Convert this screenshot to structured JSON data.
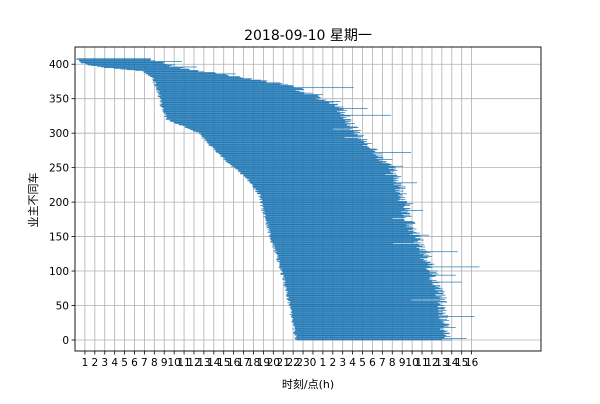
{
  "chart_data": {
    "type": "bar",
    "orientation": "horizontal",
    "title": "2018-09-10 星期一",
    "xlabel": "时刻/点(h)",
    "ylabel": "业主不同车",
    "x_tick_labels": [
      "1",
      "2",
      "3",
      "4",
      "5",
      "6",
      "7",
      "8",
      "9",
      "10",
      "11",
      "12",
      "13",
      "14",
      "15",
      "16",
      "17",
      "18",
      "19",
      "20",
      "21",
      "22",
      "23",
      "0",
      "1",
      "2",
      "3",
      "4",
      "5",
      "6",
      "7",
      "8",
      "9",
      "10",
      "11",
      "12",
      "13",
      "14",
      "15",
      "16"
    ],
    "x_tick_positions": [
      1,
      2,
      3,
      4,
      5,
      6,
      7,
      8,
      9,
      10,
      11,
      12,
      13,
      14,
      15,
      16,
      17,
      18,
      19,
      20,
      21,
      22,
      23,
      24,
      25,
      26,
      27,
      28,
      29,
      30,
      31,
      32,
      33,
      34,
      35,
      36,
      37,
      38,
      39,
      40
    ],
    "xlim": [
      0,
      47
    ],
    "ylim": [
      -16,
      425
    ],
    "y_ticks": [
      0,
      50,
      100,
      150,
      200,
      250,
      300,
      350,
      400
    ],
    "grid": true,
    "bar_color": "#1f77b4",
    "vehicles": {
      "count": 409,
      "description_of_values": "each horizontal bar spans from arrival time (start, hours) to departure time (end, hours) for vehicle index y",
      "start_anchors": [
        [
          0,
          22.3
        ],
        [
          30,
          21.9
        ],
        [
          60,
          21.5
        ],
        [
          90,
          21.0
        ],
        [
          120,
          20.4
        ],
        [
          150,
          19.7
        ],
        [
          180,
          19.1
        ],
        [
          210,
          18.6
        ],
        [
          235,
          17.3
        ],
        [
          260,
          15.2
        ],
        [
          285,
          13.4
        ],
        [
          300,
          12.5
        ],
        [
          320,
          9.3
        ],
        [
          340,
          8.7
        ],
        [
          360,
          8.4
        ],
        [
          380,
          7.8
        ],
        [
          390,
          6.8
        ],
        [
          395,
          3.0
        ],
        [
          400,
          1.0
        ],
        [
          409,
          0.0
        ]
      ],
      "end_anchors": [
        [
          0,
          37.5
        ],
        [
          60,
          37.0
        ],
        [
          120,
          35.5
        ],
        [
          180,
          33.5
        ],
        [
          240,
          32.5
        ],
        [
          300,
          28.5
        ],
        [
          340,
          26.5
        ],
        [
          370,
          21.5
        ],
        [
          395,
          10.5
        ],
        [
          409,
          7.5
        ]
      ],
      "long_extensions": [
        [
          2,
          39.5
        ],
        [
          8,
          37.2
        ],
        [
          18,
          38.4
        ],
        [
          22,
          37.8
        ],
        [
          34,
          40.3
        ],
        [
          48,
          36.6
        ],
        [
          58,
          33.9
        ],
        [
          70,
          37.3
        ],
        [
          84,
          39.0
        ],
        [
          94,
          38.4
        ],
        [
          106,
          40.8
        ],
        [
          118,
          34.8
        ],
        [
          128,
          38.6
        ],
        [
          140,
          32.1
        ],
        [
          152,
          35.7
        ],
        [
          164,
          33.4
        ],
        [
          176,
          32.0
        ],
        [
          188,
          35.1
        ],
        [
          198,
          34.1
        ],
        [
          208,
          32.8
        ],
        [
          218,
          32.3
        ],
        [
          228,
          34.5
        ],
        [
          240,
          31.3
        ],
        [
          252,
          33.1
        ],
        [
          262,
          32.0
        ],
        [
          272,
          33.9
        ],
        [
          282,
          29.0
        ],
        [
          294,
          27.2
        ],
        [
          306,
          26.0
        ],
        [
          316,
          27.6
        ],
        [
          326,
          31.9
        ],
        [
          336,
          29.5
        ],
        [
          346,
          26.8
        ],
        [
          356,
          25.0
        ],
        [
          366,
          28.1
        ],
        [
          376,
          19.4
        ],
        [
          386,
          16.2
        ],
        [
          396,
          12.3
        ],
        [
          404,
          10.8
        ]
      ]
    }
  }
}
